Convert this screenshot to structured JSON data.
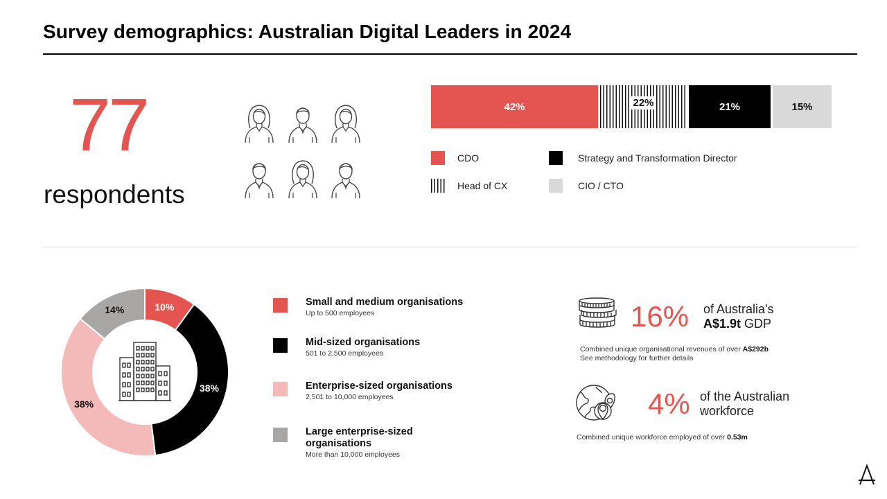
{
  "title": "Survey demographics: Australian Digital Leaders in 2024",
  "respondents": {
    "count": "77",
    "label": "respondents"
  },
  "roles_bar": {
    "segments": [
      {
        "key": "cdo",
        "label": "CDO",
        "value": 42,
        "display": "42%",
        "color": "#e45552"
      },
      {
        "key": "hcx",
        "label": "Head of CX",
        "value": 22,
        "display": "22%",
        "pattern": "vertical-stripes"
      },
      {
        "key": "std",
        "label": "Strategy and Transformation Director",
        "value": 21,
        "display": "21%",
        "color": "#000000"
      },
      {
        "key": "cio",
        "label": "CIO / CTO",
        "value": 15,
        "display": "15%",
        "color": "#d9d9d9"
      }
    ]
  },
  "org_donut": {
    "center_icon": "office-building-icon",
    "segments": [
      {
        "key": "sme",
        "display": "10%",
        "value": 10,
        "color": "#e45552"
      },
      {
        "key": "mid",
        "display": "38%",
        "value": 38,
        "color": "#000000"
      },
      {
        "key": "ent",
        "display": "38%",
        "value": 38,
        "color": "#f4b9b9"
      },
      {
        "key": "lrg",
        "display": "14%",
        "value": 14,
        "color": "#a9a6a6"
      }
    ]
  },
  "org_legend": [
    {
      "key": "sme",
      "name": "Small and medium organisations",
      "sub": "Up to 500 employees"
    },
    {
      "key": "mid",
      "name": "Mid-sized organisations",
      "sub": "501 to 2,500 employees"
    },
    {
      "key": "ent",
      "name": "Enterprise-sized organisations",
      "sub": "2,501 to 10,000 employees"
    },
    {
      "key": "lrg",
      "name": "Large enterprise-sized organisations",
      "sub": "More than 10,000 employees"
    }
  ],
  "gdp_stat": {
    "icon": "coin-stack-icon",
    "percent": "16%",
    "line1": "of Australia's",
    "line2_bold": "A$1.9t",
    "line2_rest": "GDP",
    "note_line1_prefix": "Combined unique organisational revenues of over",
    "note_line1_bold": "A$292b",
    "note_line2": "See methodology for further details"
  },
  "workforce_stat": {
    "icon": "globe-location-icon",
    "percent": "4%",
    "line1": "of the Australian",
    "line2": "workforce",
    "note_prefix": "Combined unique workforce employed of over",
    "note_bold": "0.53m"
  },
  "brand_icon": "accenture-a-logo-icon",
  "colors": {
    "accent": "#e45552",
    "pink": "#f4b9b9",
    "grey": "#a9a6a6",
    "light_grey": "#d9d9d9"
  }
}
